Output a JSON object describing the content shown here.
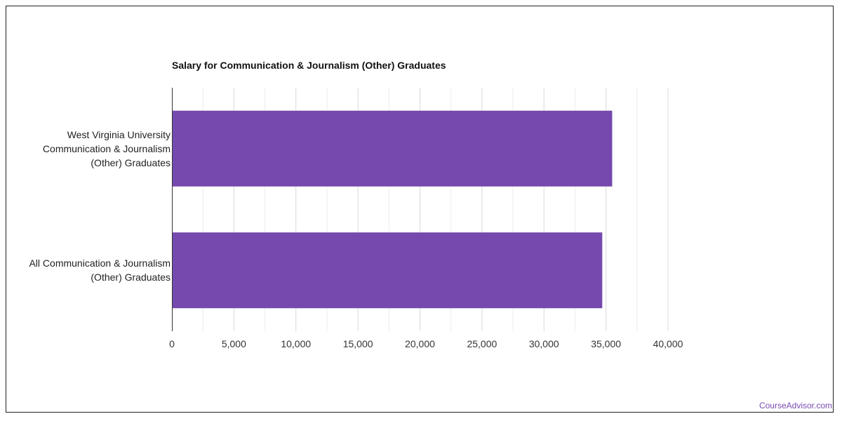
{
  "chart_data": {
    "type": "bar",
    "orientation": "horizontal",
    "title": "Salary for Communication & Journalism (Other) Graduates",
    "categories": [
      [
        "West Virginia University",
        "Communication & Journalism",
        "(Other) Graduates"
      ],
      [
        "All Communication & Journalism",
        "(Other) Graduates"
      ]
    ],
    "values": [
      35500,
      34700
    ],
    "xlim": [
      0,
      40000
    ],
    "xticks": [
      "0",
      "5,000",
      "10,000",
      "15,000",
      "20,000",
      "25,000",
      "30,000",
      "35,000",
      "40,000"
    ],
    "xtick_values": [
      0,
      5000,
      10000,
      15000,
      20000,
      25000,
      30000,
      35000,
      40000
    ],
    "minor_gridlines": true,
    "bar_color": "#7549ad",
    "grid_color": "#d9d9d9"
  },
  "watermark": "CourseAdvisor.com"
}
